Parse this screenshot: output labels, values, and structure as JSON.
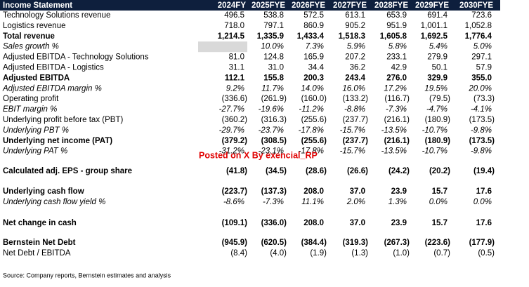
{
  "table": {
    "header": [
      "Income Statement",
      "2024FY",
      "2025FYE",
      "2026FYE",
      "2027FYE",
      "2028FYE",
      "2029FYE",
      "2030FYE"
    ],
    "rows": [
      {
        "label": "Technology Solutions revenue",
        "style": "normal",
        "values": [
          "496.5",
          "538.8",
          "572.5",
          "613.1",
          "653.9",
          "691.4",
          "723.6"
        ]
      },
      {
        "label": "Logistics revenue",
        "style": "normal",
        "values": [
          "718.0",
          "797.1",
          "860.9",
          "905.2",
          "951.9",
          "1,001.1",
          "1,052.8"
        ]
      },
      {
        "label": "Total revenue",
        "style": "bold",
        "values": [
          "1,214.5",
          "1,335.9",
          "1,433.4",
          "1,518.3",
          "1,605.8",
          "1,692.5",
          "1,776.4"
        ]
      },
      {
        "label": "Sales growth %",
        "style": "italic",
        "values": [
          null,
          "10.0%",
          "7.3%",
          "5.9%",
          "5.8%",
          "5.4%",
          "5.0%"
        ]
      },
      {
        "label": "Adjusted EBITDA - Technology Solutions",
        "style": "normal",
        "values": [
          "81.0",
          "124.8",
          "165.9",
          "207.2",
          "233.1",
          "279.9",
          "297.1"
        ]
      },
      {
        "label": "Adjusted EBITDA - Logistics",
        "style": "normal",
        "values": [
          "31.1",
          "31.0",
          "34.4",
          "36.2",
          "42.9",
          "50.1",
          "57.9"
        ]
      },
      {
        "label": "Adjusted EBITDA",
        "style": "bold",
        "values": [
          "112.1",
          "155.8",
          "200.3",
          "243.4",
          "276.0",
          "329.9",
          "355.0"
        ]
      },
      {
        "label": "Adjusted EBITDA margin %",
        "style": "italic",
        "values": [
          "9.2%",
          "11.7%",
          "14.0%",
          "16.0%",
          "17.2%",
          "19.5%",
          "20.0%"
        ]
      },
      {
        "label": "Operating profit",
        "style": "normal",
        "values": [
          "(336.6)",
          "(261.9)",
          "(160.0)",
          "(133.2)",
          "(116.7)",
          "(79.5)",
          "(73.3)"
        ]
      },
      {
        "label": "EBIT margin %",
        "style": "italic",
        "values": [
          "-27.7%",
          "-19.6%",
          "-11.2%",
          "-8.8%",
          "-7.3%",
          "-4.7%",
          "-4.1%"
        ]
      },
      {
        "label": "Underlying profit before tax (PBT)",
        "style": "normal",
        "values": [
          "(360.2)",
          "(316.3)",
          "(255.6)",
          "(237.7)",
          "(216.1)",
          "(180.9)",
          "(173.5)"
        ]
      },
      {
        "label": "Underlying PBT %",
        "style": "italic",
        "values": [
          "-29.7%",
          "-23.7%",
          "-17.8%",
          "-15.7%",
          "-13.5%",
          "-10.7%",
          "-9.8%"
        ]
      },
      {
        "label": "Underlying net income (PAT)",
        "style": "bold",
        "values": [
          "(379.2)",
          "(308.5)",
          "(255.6)",
          "(237.7)",
          "(216.1)",
          "(180.9)",
          "(173.5)"
        ]
      },
      {
        "label": "Underlying PAT %",
        "style": "italic",
        "values": [
          "-31.2%",
          "-23.1%",
          "-17.8%",
          "-15.7%",
          "-13.5%",
          "-10.7%",
          "-9.8%"
        ]
      },
      {
        "label": "Calculated adj. EPS - group share",
        "style": "bold",
        "values": [
          "(41.8)",
          "(34.5)",
          "(28.6)",
          "(26.6)",
          "(24.2)",
          "(20.2)",
          "(19.4)"
        ]
      },
      {
        "label": "Underlying cash flow",
        "style": "bold",
        "values": [
          "(223.7)",
          "(137.3)",
          "208.0",
          "37.0",
          "23.9",
          "15.7",
          "17.6"
        ]
      },
      {
        "label": "Underlying cash flow yield %",
        "style": "italic",
        "values": [
          "-8.6%",
          "-7.3%",
          "11.1%",
          "2.0%",
          "1.3%",
          "0.0%",
          "0.0%"
        ]
      },
      {
        "label": "Net change in cash",
        "style": "bold",
        "values": [
          "(109.1)",
          "(336.0)",
          "208.0",
          "37.0",
          "23.9",
          "15.7",
          "17.6"
        ]
      },
      {
        "label": "Bernstein Net Debt",
        "style": "bold",
        "values": [
          "(945.9)",
          "(620.5)",
          "(384.4)",
          "(319.3)",
          "(267.3)",
          "(223.6)",
          "(177.9)"
        ]
      },
      {
        "label": "Net Debt / EBITDA",
        "style": "normal",
        "values": [
          "(8.4)",
          "(4.0)",
          "(1.9)",
          "(1.3)",
          "(1.0)",
          "(0.7)",
          "(0.5)"
        ]
      }
    ],
    "watermark": "Posted on X By exencial_RP",
    "source": "Source: Company reports, Bernstein estimates and analysis"
  }
}
